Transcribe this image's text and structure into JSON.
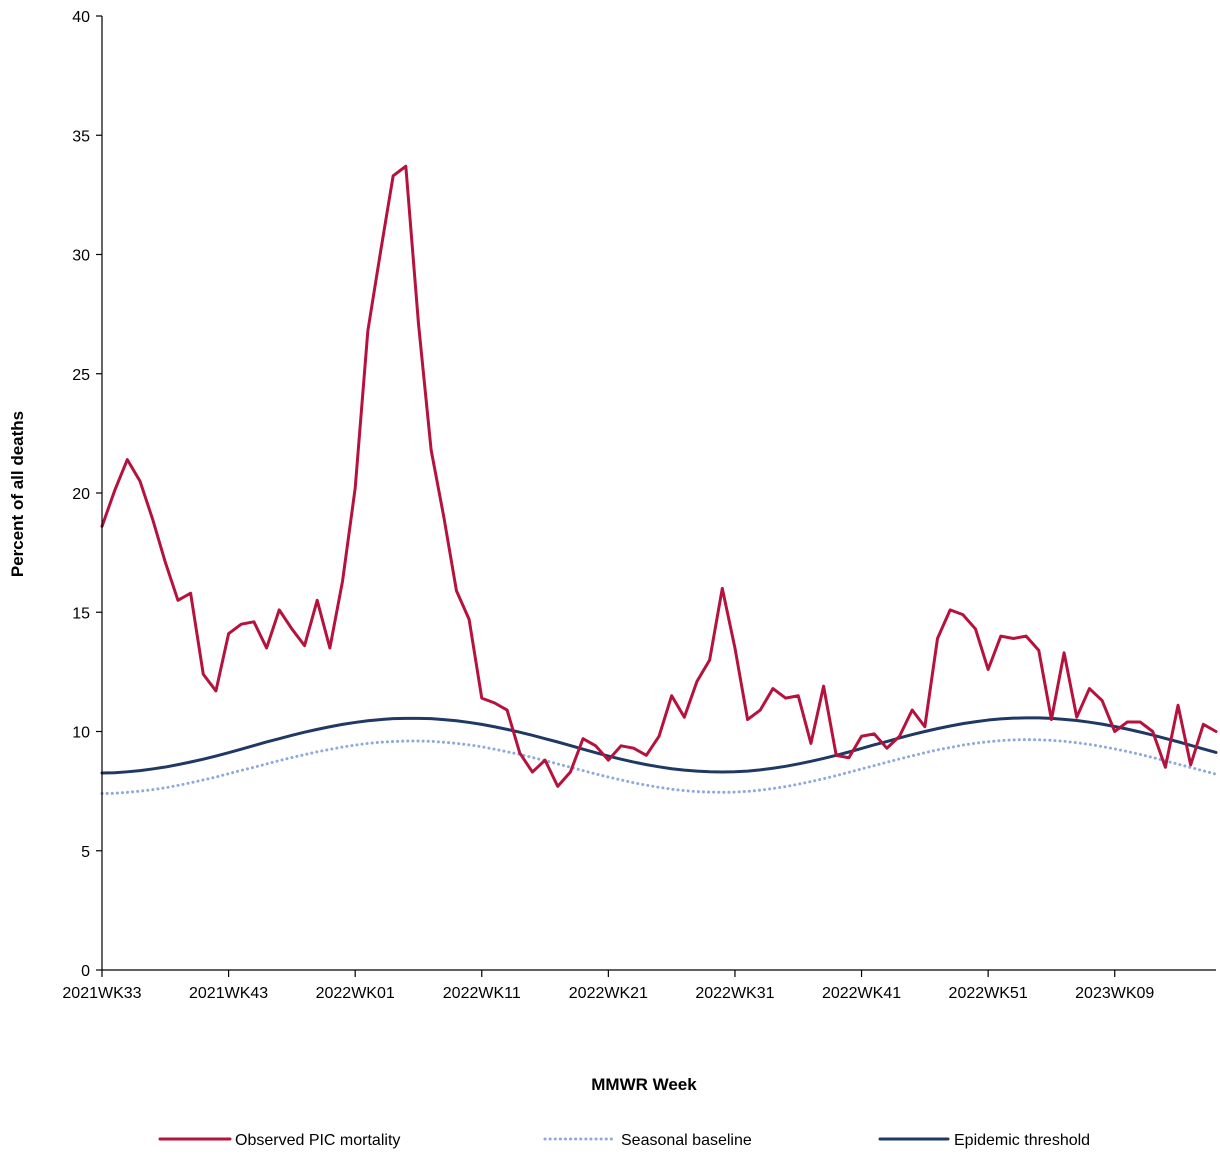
{
  "chart_data": {
    "type": "line",
    "title": "",
    "xlabel": "MMWR Week",
    "ylabel": "Percent of all deaths",
    "ylim": [
      0,
      40
    ],
    "yticks": [
      0,
      5,
      10,
      15,
      20,
      25,
      30,
      35,
      40
    ],
    "xlim": [
      0,
      88
    ],
    "xticks": [
      {
        "label": "2021WK33",
        "index": 0
      },
      {
        "label": "2021WK43",
        "index": 10
      },
      {
        "label": "2022WK01",
        "index": 20
      },
      {
        "label": "2022WK11",
        "index": 30
      },
      {
        "label": "2022WK21",
        "index": 40
      },
      {
        "label": "2022WK31",
        "index": 50
      },
      {
        "label": "2022WK41",
        "index": 60
      },
      {
        "label": "2022WK51",
        "index": 70
      },
      {
        "label": "2023WK09",
        "index": 80
      }
    ],
    "grid": false,
    "legend_position": "bottom",
    "series": [
      {
        "name": "Observed PIC mortality",
        "color": "#b5123e",
        "style": "solid",
        "values": [
          18.6,
          20.1,
          21.4,
          20.5,
          18.9,
          17.1,
          15.5,
          15.8,
          12.4,
          11.7,
          14.1,
          14.5,
          14.6,
          13.5,
          15.1,
          14.3,
          13.6,
          15.5,
          13.5,
          16.3,
          20.2,
          26.8,
          30.1,
          33.3,
          33.7,
          27.1,
          21.8,
          19.0,
          15.9,
          14.7,
          11.4,
          11.2,
          10.9,
          9.1,
          8.3,
          8.8,
          7.7,
          8.3,
          9.7,
          9.4,
          8.8,
          9.4,
          9.3,
          9.0,
          9.8,
          11.5,
          10.6,
          12.1,
          13.0,
          16.0,
          13.5,
          10.5,
          10.9,
          11.8,
          11.4,
          11.5,
          9.5,
          11.9,
          9.0,
          8.9,
          9.8,
          9.9,
          9.3,
          9.8,
          10.9,
          10.2,
          13.9,
          15.1,
          14.9,
          14.3,
          12.6,
          14.0,
          13.9,
          14.0,
          13.4,
          10.5,
          13.3,
          10.6,
          11.8,
          11.3,
          10.0,
          10.4,
          10.4,
          10.0,
          8.5,
          11.1,
          8.6,
          10.3,
          10.0
        ]
      },
      {
        "name": "Seasonal baseline",
        "color": "#8eaadb",
        "style": "dotted",
        "values": [
          7.4,
          7.41,
          7.45,
          7.5,
          7.56,
          7.64,
          7.74,
          7.85,
          7.97,
          8.09,
          8.23,
          8.37,
          8.5,
          8.64,
          8.78,
          8.91,
          9.03,
          9.15,
          9.25,
          9.35,
          9.43,
          9.5,
          9.55,
          9.58,
          9.6,
          9.6,
          9.59,
          9.55,
          9.5,
          9.44,
          9.36,
          9.26,
          9.15,
          9.04,
          8.91,
          8.78,
          8.64,
          8.5,
          8.36,
          8.22,
          8.09,
          7.97,
          7.85,
          7.75,
          7.66,
          7.58,
          7.52,
          7.48,
          7.46,
          7.45,
          7.46,
          7.49,
          7.54,
          7.61,
          7.69,
          7.79,
          7.9,
          8.02,
          8.15,
          8.29,
          8.43,
          8.57,
          8.71,
          8.85,
          8.98,
          9.11,
          9.23,
          9.33,
          9.43,
          9.51,
          9.57,
          9.62,
          9.65,
          9.66,
          9.65,
          9.63,
          9.59,
          9.53,
          9.46,
          9.37,
          9.27,
          9.16,
          9.04,
          8.91,
          8.77,
          8.63,
          8.49,
          8.35,
          8.21
        ]
      },
      {
        "name": "Epidemic threshold",
        "color": "#203864",
        "style": "solid",
        "values": [
          8.26,
          8.27,
          8.31,
          8.36,
          8.43,
          8.51,
          8.61,
          8.72,
          8.84,
          8.97,
          9.11,
          9.26,
          9.41,
          9.56,
          9.7,
          9.84,
          9.97,
          10.09,
          10.2,
          10.3,
          10.38,
          10.45,
          10.5,
          10.54,
          10.55,
          10.55,
          10.54,
          10.5,
          10.45,
          10.38,
          10.3,
          10.2,
          10.09,
          9.97,
          9.84,
          9.7,
          9.56,
          9.41,
          9.26,
          9.11,
          8.97,
          8.84,
          8.72,
          8.61,
          8.52,
          8.44,
          8.38,
          8.34,
          8.31,
          8.3,
          8.31,
          8.34,
          8.39,
          8.46,
          8.54,
          8.64,
          8.75,
          8.87,
          9.0,
          9.14,
          9.29,
          9.44,
          9.58,
          9.73,
          9.87,
          10.0,
          10.12,
          10.23,
          10.33,
          10.41,
          10.48,
          10.53,
          10.56,
          10.57,
          10.57,
          10.55,
          10.51,
          10.46,
          10.39,
          10.31,
          10.21,
          10.1,
          9.98,
          9.85,
          9.71,
          9.57,
          9.42,
          9.27,
          9.12
        ]
      }
    ]
  }
}
